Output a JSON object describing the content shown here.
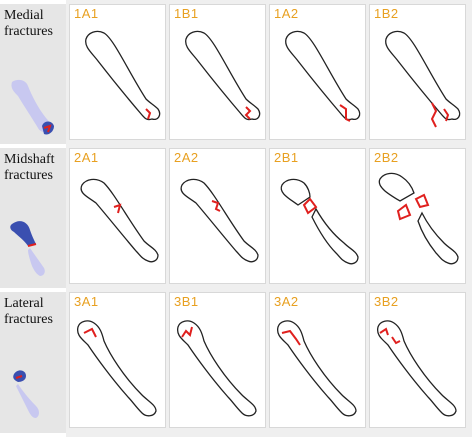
{
  "rows": [
    {
      "label": "Medial\nfractures",
      "cells": [
        "1A1",
        "1B1",
        "1A2",
        "1B2"
      ]
    },
    {
      "label": "Midshaft\nfractures",
      "cells": [
        "2A1",
        "2A2",
        "2B1",
        "2B2"
      ]
    },
    {
      "label": "Lateral\nfractures",
      "cells": [
        "3A1",
        "3B1",
        "3A2",
        "3B2"
      ]
    }
  ],
  "colors": {
    "code_label": "#e8a020",
    "fracture_line": "#e0201e",
    "bone_outline": "#222222",
    "thumb_bone": "#c8c8f0",
    "thumb_highlight": "#3a4fb0",
    "label_panel": "#e6e6e6"
  }
}
